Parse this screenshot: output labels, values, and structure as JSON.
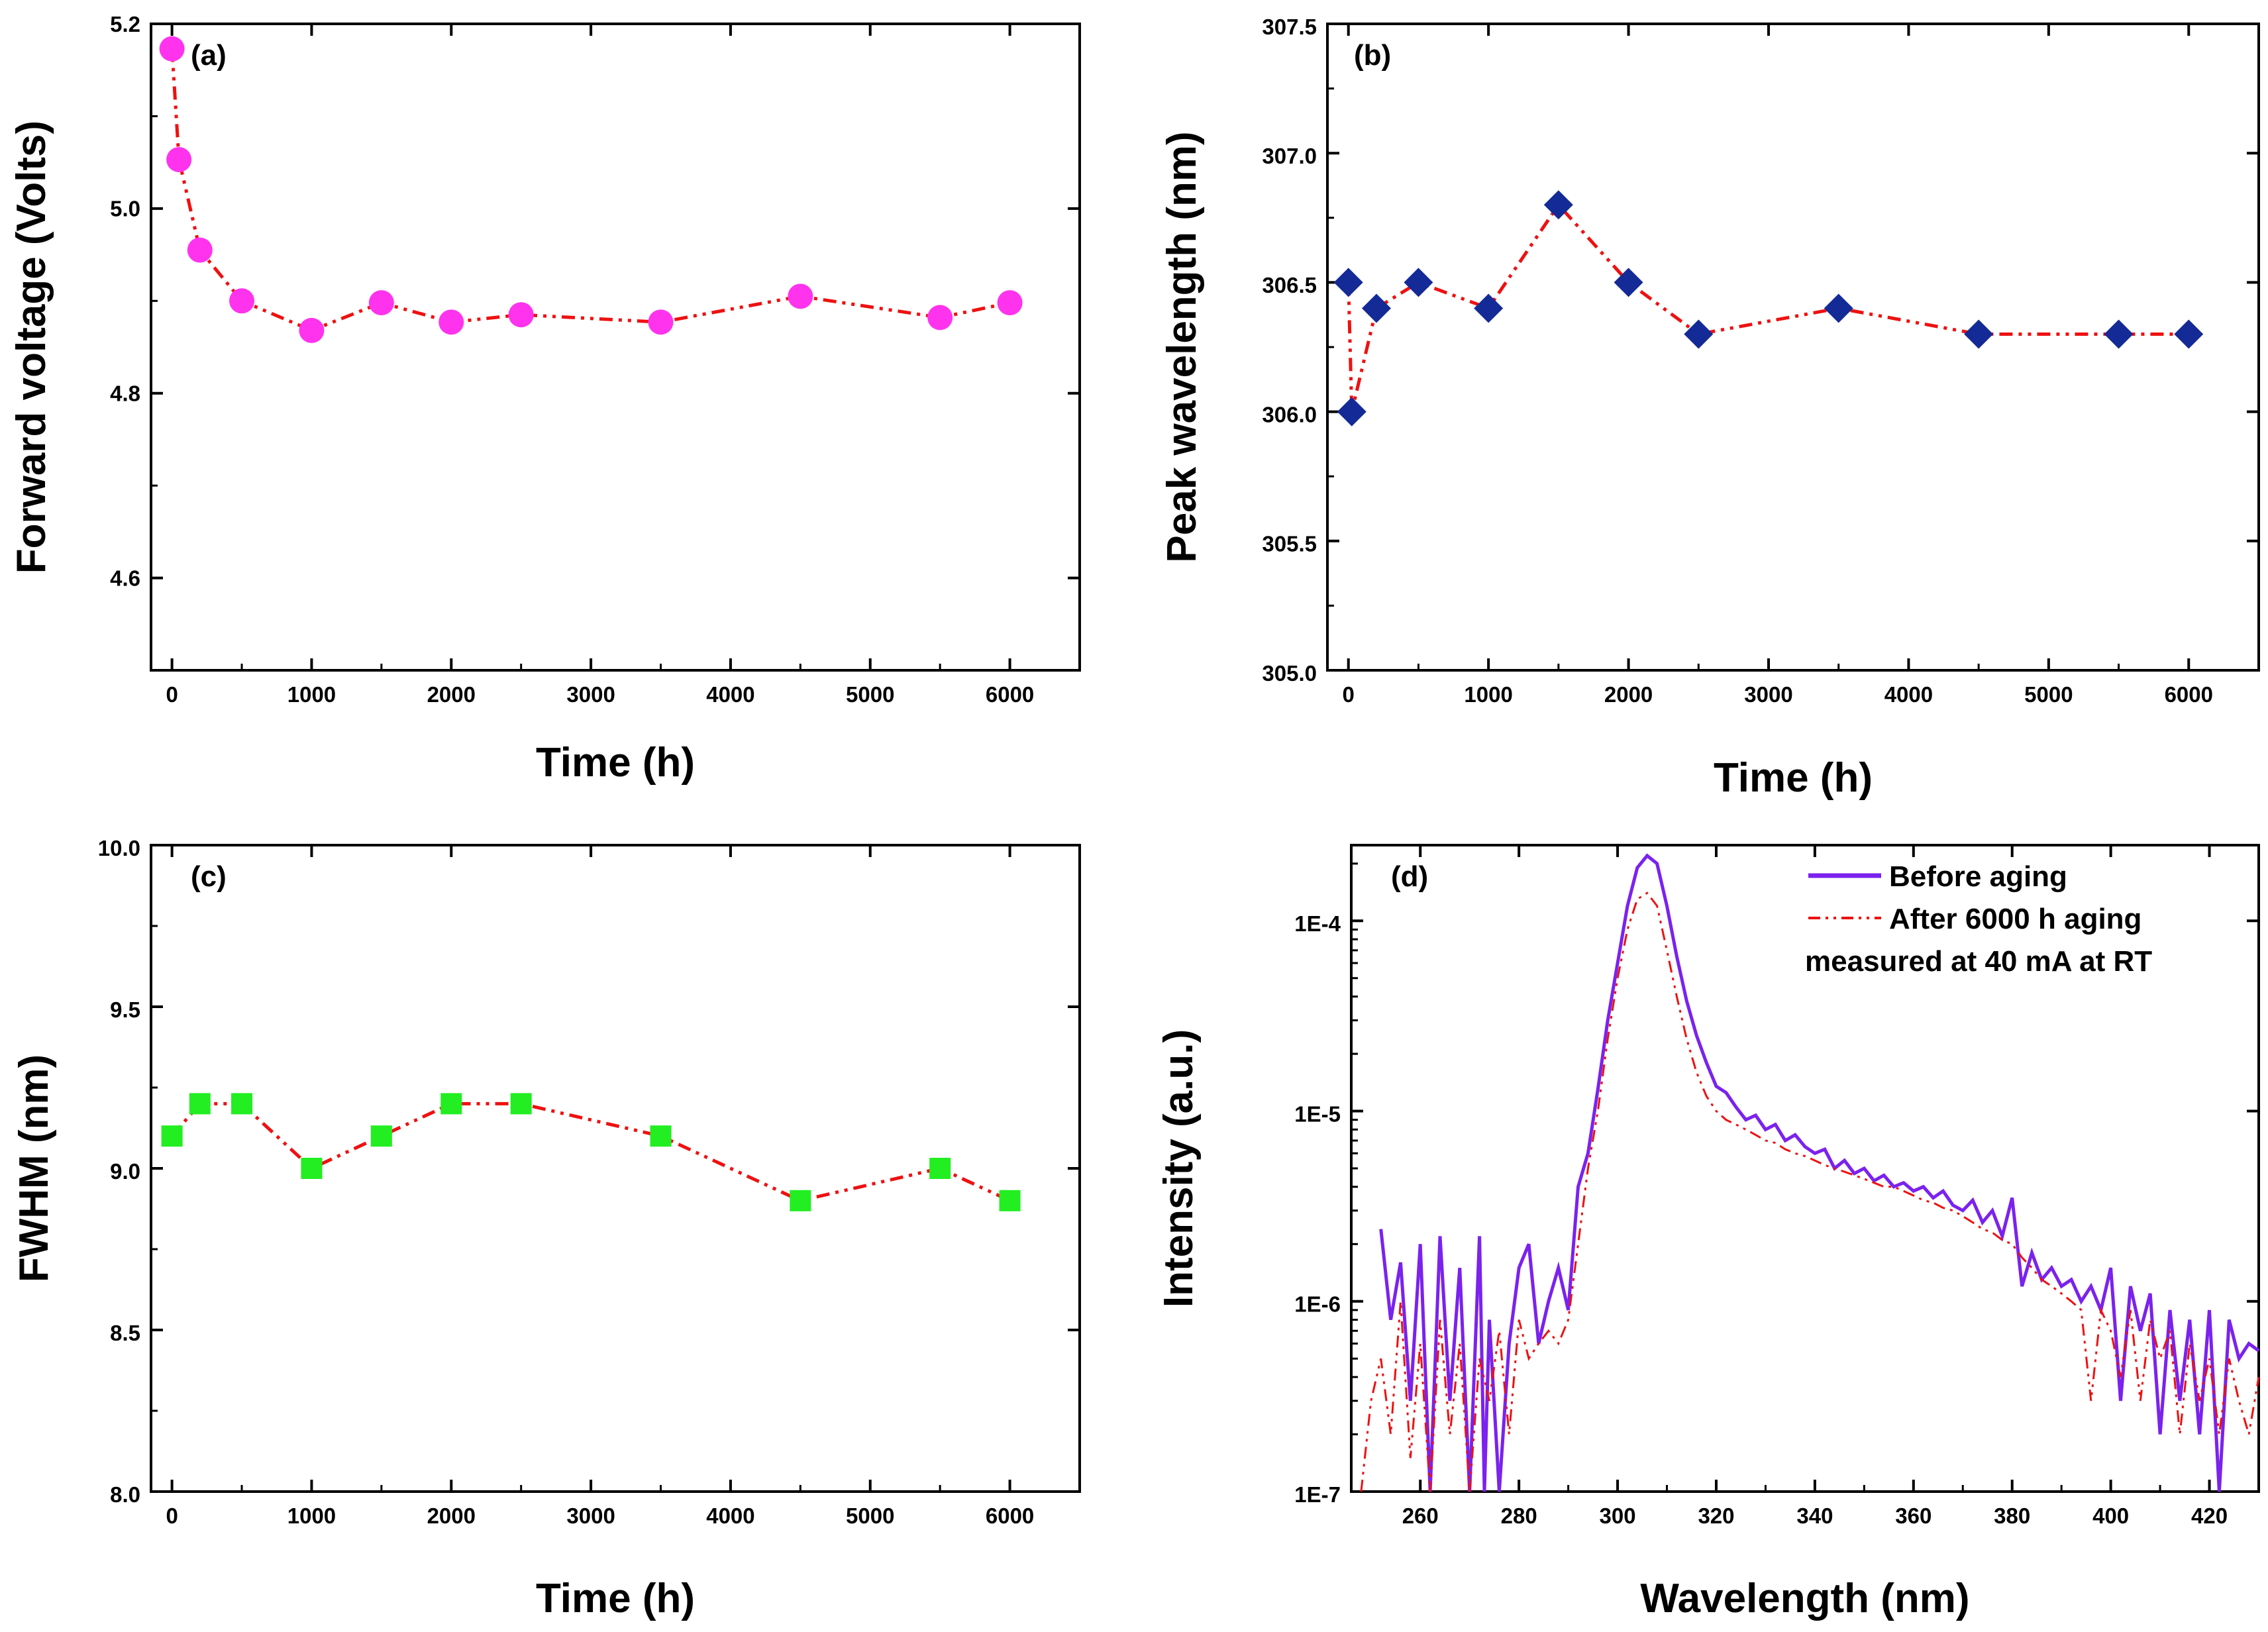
{
  "chart_data": [
    {
      "id": "a",
      "type": "line",
      "panel_label": "(a)",
      "xlabel": "Time (h)",
      "ylabel": "Forward voltage (Volts)",
      "xlim": [
        -150,
        6500
      ],
      "ylim": [
        4.5,
        5.2
      ],
      "xticks": [
        0,
        1000,
        2000,
        3000,
        4000,
        5000,
        6000
      ],
      "xtick_labels": [
        "0",
        "1000",
        "2000",
        "3000",
        "4000",
        "5000",
        "6000"
      ],
      "yticks": [
        4.6,
        4.8,
        5.0,
        5.2
      ],
      "ytick_labels": [
        "4.6",
        "4.8",
        "5.0",
        "5.2"
      ],
      "marker": "circle",
      "marker_color": "#ff33ee",
      "line_color": "#ee1111",
      "series": [
        {
          "name": "Forward voltage",
          "x": [
            0,
            50,
            200,
            500,
            1000,
            1500,
            2000,
            2500,
            3500,
            4500,
            5500,
            6000
          ],
          "y": [
            5.173,
            5.053,
            4.955,
            4.9,
            4.868,
            4.898,
            4.877,
            4.885,
            4.877,
            4.905,
            4.882,
            4.898
          ]
        }
      ]
    },
    {
      "id": "b",
      "type": "line",
      "panel_label": "(b)",
      "xlabel": "Time (h)",
      "ylabel": "Peak wavelength (nm)",
      "xlim": [
        -150,
        6500
      ],
      "ylim": [
        305.0,
        307.5
      ],
      "xticks": [
        0,
        1000,
        2000,
        3000,
        4000,
        5000,
        6000
      ],
      "xtick_labels": [
        "0",
        "1000",
        "2000",
        "3000",
        "4000",
        "5000",
        "6000"
      ],
      "yticks": [
        305.0,
        305.5,
        306.0,
        306.5,
        307.0,
        307.5
      ],
      "ytick_labels": [
        "305.0",
        "305.5",
        "306.0",
        "306.5",
        "307.0",
        "307.5"
      ],
      "marker": "diamond",
      "marker_color": "#142a96",
      "line_color": "#ee1111",
      "series": [
        {
          "name": "Peak wavelength",
          "x": [
            0,
            24,
            200,
            500,
            1000,
            1500,
            2000,
            2500,
            3500,
            4500,
            5500,
            6000
          ],
          "y": [
            306.5,
            306.0,
            306.4,
            306.5,
            306.4,
            306.8,
            306.5,
            306.3,
            306.4,
            306.3,
            306.3,
            306.3
          ]
        }
      ]
    },
    {
      "id": "c",
      "type": "line",
      "panel_label": "(c)",
      "xlabel": "Time (h)",
      "ylabel": "FWHM (nm)",
      "xlim": [
        -150,
        6500
      ],
      "ylim": [
        8.0,
        10.0
      ],
      "xticks": [
        0,
        1000,
        2000,
        3000,
        4000,
        5000,
        6000
      ],
      "xtick_labels": [
        "0",
        "1000",
        "2000",
        "3000",
        "4000",
        "5000",
        "6000"
      ],
      "yticks": [
        8.0,
        8.5,
        9.0,
        9.5,
        10.0
      ],
      "ytick_labels": [
        "8.0",
        "8.5",
        "9.0",
        "9.5",
        "10.0"
      ],
      "marker": "square",
      "marker_color": "#22ee22",
      "line_color": "#ee1111",
      "series": [
        {
          "name": "FWHM",
          "x": [
            0,
            200,
            500,
            1000,
            1500,
            2000,
            2500,
            3500,
            4500,
            5500,
            6000
          ],
          "y": [
            9.1,
            9.2,
            9.2,
            9.0,
            9.1,
            9.2,
            9.2,
            9.1,
            8.9,
            9.0,
            8.9
          ]
        }
      ]
    },
    {
      "id": "d",
      "type": "line",
      "panel_label": "(d)",
      "xlabel": "Wavelength (nm)",
      "ylabel": "Intensity (a.u.)",
      "xlim": [
        246,
        430
      ],
      "ylim": [
        1e-07,
        0.00025
      ],
      "yscale": "log",
      "xticks": [
        260,
        280,
        300,
        320,
        340,
        360,
        380,
        400,
        420
      ],
      "xtick_labels": [
        "260",
        "280",
        "300",
        "320",
        "340",
        "360",
        "380",
        "400",
        "420"
      ],
      "yticks": [
        1e-07,
        1e-06,
        1e-05,
        0.0001
      ],
      "ytick_labels": [
        "1E-7",
        "1E-6",
        "1E-5",
        "1E-4"
      ],
      "legend": {
        "position": "top-right",
        "entries": [
          "Before aging",
          "After 6000 h aging"
        ],
        "note": "measured at 40 mA at RT"
      },
      "series": [
        {
          "name": "Before aging",
          "color": "#7b22ee",
          "style": "solid",
          "x": [
            252,
            254,
            256,
            258,
            260,
            262,
            264,
            266,
            268,
            270,
            272,
            273,
            274,
            276,
            278,
            280,
            282,
            284,
            286,
            288,
            290,
            292,
            294,
            296,
            298,
            300,
            302,
            304,
            306,
            308,
            310,
            312,
            314,
            316,
            318,
            320,
            322,
            324,
            326,
            328,
            330,
            332,
            334,
            336,
            338,
            340,
            342,
            344,
            346,
            348,
            350,
            352,
            354,
            356,
            358,
            360,
            362,
            364,
            366,
            368,
            370,
            372,
            374,
            376,
            378,
            380,
            382,
            384,
            386,
            388,
            390,
            392,
            394,
            396,
            398,
            400,
            402,
            404,
            406,
            408,
            410,
            412,
            414,
            416,
            418,
            420,
            422,
            424,
            426,
            428,
            430
          ],
          "y": [
            2.4e-06,
            8e-07,
            1.6e-06,
            3e-07,
            2e-06,
            1e-07,
            2.2e-06,
            3e-07,
            1.5e-06,
            1e-07,
            2.2e-06,
            1e-07,
            8e-07,
            1e-07,
            6e-07,
            1.5e-06,
            2e-06,
            6e-07,
            1e-06,
            1.5e-06,
            9e-07,
            4e-06,
            6e-06,
            1.3e-05,
            3e-05,
            6e-05,
            0.00012,
            0.00019,
            0.00022,
            0.0002,
            0.00012,
            6.5e-05,
            3.8e-05,
            2.5e-05,
            1.8e-05,
            1.35e-05,
            1.25e-05,
            1.05e-05,
            9e-06,
            9.5e-06,
            8e-06,
            8.5e-06,
            7e-06,
            7.5e-06,
            6.5e-06,
            6e-06,
            6.3e-06,
            5e-06,
            5.5e-06,
            4.7e-06,
            5e-06,
            4.3e-06,
            4.6e-06,
            4e-06,
            4.2e-06,
            3.8e-06,
            4e-06,
            3.5e-06,
            3.8e-06,
            3.2e-06,
            3e-06,
            3.4e-06,
            2.6e-06,
            3e-06,
            2.2e-06,
            3.5e-06,
            1.2e-06,
            1.8e-06,
            1.3e-06,
            1.5e-06,
            1.2e-06,
            1.3e-06,
            1e-06,
            1.2e-06,
            9e-07,
            1.5e-06,
            3e-07,
            1.2e-06,
            7e-07,
            1.1e-06,
            2e-07,
            9e-07,
            3e-07,
            8e-07,
            2e-07,
            9e-07,
            1e-07,
            8e-07,
            5e-07,
            6e-07,
            5.5e-07
          ]
        },
        {
          "name": "After 6000 h aging",
          "color": "#ee1111",
          "style": "dashdot",
          "x": [
            248,
            250,
            252,
            254,
            256,
            258,
            260,
            262,
            264,
            266,
            268,
            270,
            272,
            274,
            276,
            278,
            280,
            282,
            284,
            286,
            288,
            290,
            292,
            294,
            296,
            298,
            300,
            302,
            304,
            306,
            308,
            310,
            312,
            314,
            316,
            318,
            320,
            322,
            324,
            326,
            328,
            330,
            332,
            334,
            336,
            338,
            340,
            342,
            344,
            346,
            348,
            350,
            352,
            354,
            356,
            358,
            360,
            362,
            364,
            366,
            368,
            370,
            372,
            374,
            376,
            378,
            380,
            382,
            384,
            386,
            388,
            390,
            392,
            394,
            396,
            398,
            400,
            402,
            404,
            406,
            408,
            410,
            412,
            414,
            416,
            418,
            420,
            422,
            424,
            426,
            428,
            430
          ],
          "y": [
            1e-07,
            3e-07,
            5e-07,
            2e-07,
            1e-06,
            1.5e-07,
            6e-07,
            1e-07,
            8e-07,
            2e-07,
            6e-07,
            1e-07,
            5e-07,
            3e-07,
            7e-07,
            2e-07,
            8e-07,
            5e-07,
            6e-07,
            7e-07,
            6e-07,
            8e-07,
            2e-06,
            5e-06,
            1e-05,
            2.4e-05,
            5e-05,
            9e-05,
            0.00013,
            0.00014,
            0.00012,
            7e-05,
            4e-05,
            2.4e-05,
            1.6e-05,
            1.2e-05,
            1e-05,
            9e-06,
            8.5e-06,
            8e-06,
            7.5e-06,
            7e-06,
            6.8e-06,
            6.3e-06,
            6e-06,
            5.8e-06,
            5.5e-06,
            5.2e-06,
            5e-06,
            4.8e-06,
            4.6e-06,
            4.4e-06,
            4.2e-06,
            4e-06,
            4e-06,
            3.8e-06,
            3.6e-06,
            3.4e-06,
            3.3e-06,
            3.1e-06,
            3e-06,
            2.8e-06,
            2.6e-06,
            2.4e-06,
            2.3e-06,
            2.1e-06,
            2e-06,
            1.7e-06,
            1.5e-06,
            1.3e-06,
            1.2e-06,
            1.1e-06,
            1e-06,
            9e-07,
            3e-07,
            9e-07,
            7e-07,
            4e-07,
            9e-07,
            3e-07,
            8e-07,
            5e-07,
            7e-07,
            2e-07,
            6e-07,
            3e-07,
            5e-07,
            2e-07,
            5e-07,
            3e-07,
            2e-07,
            4e-07
          ]
        }
      ]
    }
  ]
}
